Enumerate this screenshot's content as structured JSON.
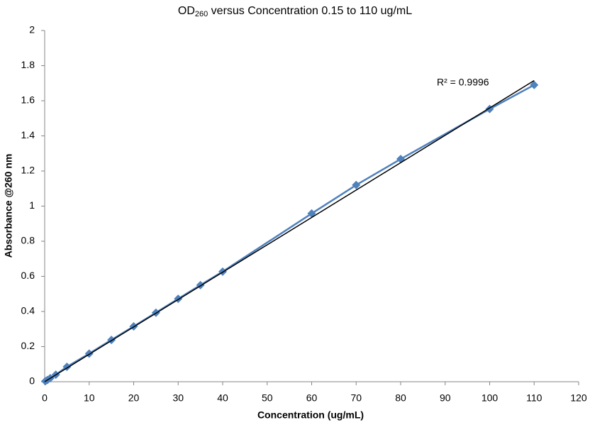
{
  "chart_data": {
    "type": "scatter",
    "title": {
      "main": "OD",
      "subscript": "260",
      "rest": " versus Concentration 0.15 to 110 ug/mL"
    },
    "x_label": "Concentration (ug/mL)",
    "y_label": "Absorbance @260 nm",
    "annotation": "R² = 0.9996",
    "series": [
      {
        "name": "Absorbance",
        "color": "#4f81bd",
        "marker": "diamond",
        "line": true,
        "x": [
          0.15,
          0.625,
          1.25,
          2.5,
          5,
          10,
          15,
          20,
          25,
          30,
          35,
          40,
          60,
          70,
          80,
          100,
          110
        ],
        "values": [
          0.003,
          0.01,
          0.02,
          0.04,
          0.085,
          0.16,
          0.238,
          0.315,
          0.393,
          0.472,
          0.55,
          0.627,
          0.958,
          1.12,
          1.268,
          1.553,
          1.69
        ]
      },
      {
        "name": "Linear trendline",
        "color": "#000000",
        "marker": "none",
        "line": true,
        "x": [
          0,
          110
        ],
        "values": [
          0,
          1.715
        ]
      }
    ],
    "xlim": [
      0,
      120
    ],
    "xticks": [
      0,
      10,
      20,
      30,
      40,
      50,
      60,
      70,
      80,
      90,
      100,
      110,
      120
    ],
    "ylim": [
      0,
      2
    ],
    "yticks": [
      0,
      0.2,
      0.4,
      0.6,
      0.8,
      1,
      1.2,
      1.4,
      1.6,
      1.8,
      2
    ],
    "grid": false
  }
}
